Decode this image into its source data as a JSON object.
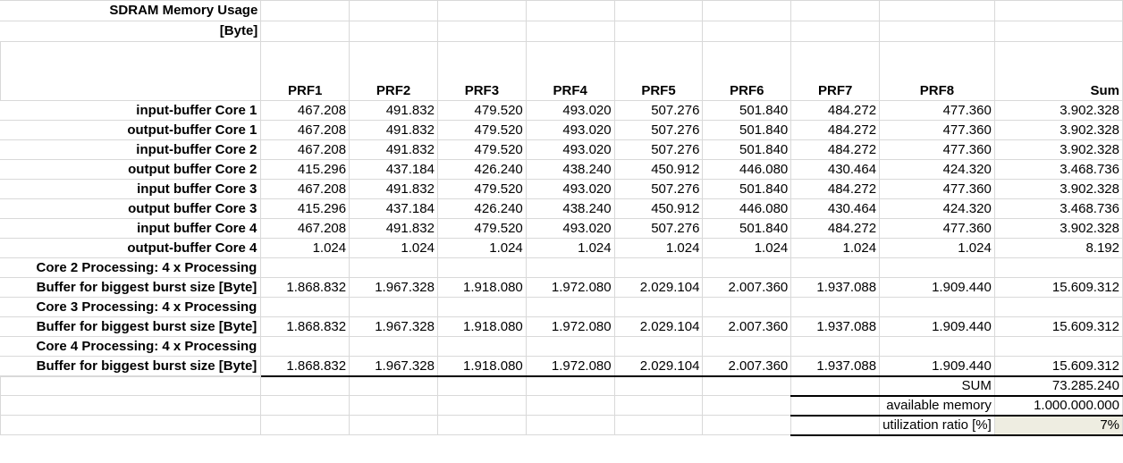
{
  "title_line1": "SDRAM Memory Usage",
  "title_line2": "[Byte]",
  "headers": [
    "PRF1",
    "PRF2",
    "PRF3",
    "PRF4",
    "PRF5",
    "PRF6",
    "PRF7",
    "PRF8",
    "Sum"
  ],
  "rows": [
    {
      "label": "input-buffer Core 1",
      "values": [
        "467.208",
        "491.832",
        "479.520",
        "493.020",
        "507.276",
        "501.840",
        "484.272",
        "477.360",
        "3.902.328"
      ]
    },
    {
      "label": "output-buffer Core 1",
      "values": [
        "467.208",
        "491.832",
        "479.520",
        "493.020",
        "507.276",
        "501.840",
        "484.272",
        "477.360",
        "3.902.328"
      ]
    },
    {
      "label": "input-buffer Core 2",
      "values": [
        "467.208",
        "491.832",
        "479.520",
        "493.020",
        "507.276",
        "501.840",
        "484.272",
        "477.360",
        "3.902.328"
      ]
    },
    {
      "label": "output buffer Core 2",
      "values": [
        "415.296",
        "437.184",
        "426.240",
        "438.240",
        "450.912",
        "446.080",
        "430.464",
        "424.320",
        "3.468.736"
      ]
    },
    {
      "label": "input buffer Core 3",
      "values": [
        "467.208",
        "491.832",
        "479.520",
        "493.020",
        "507.276",
        "501.840",
        "484.272",
        "477.360",
        "3.902.328"
      ]
    },
    {
      "label": "output buffer Core 3",
      "values": [
        "415.296",
        "437.184",
        "426.240",
        "438.240",
        "450.912",
        "446.080",
        "430.464",
        "424.320",
        "3.468.736"
      ]
    },
    {
      "label": "input buffer Core 4",
      "values": [
        "467.208",
        "491.832",
        "479.520",
        "493.020",
        "507.276",
        "501.840",
        "484.272",
        "477.360",
        "3.902.328"
      ]
    },
    {
      "label": "output-buffer Core 4",
      "values": [
        "1.024",
        "1.024",
        "1.024",
        "1.024",
        "1.024",
        "1.024",
        "1.024",
        "1.024",
        "8.192"
      ]
    }
  ],
  "processing_rows": [
    {
      "label_line1": "Core 2 Processing: 4 x Processing",
      "label_line2": "Buffer for biggest burst size [Byte]",
      "values": [
        "1.868.832",
        "1.967.328",
        "1.918.080",
        "1.972.080",
        "2.029.104",
        "2.007.360",
        "1.937.088",
        "1.909.440",
        "15.609.312"
      ]
    },
    {
      "label_line1": "Core 3 Processing: 4 x Processing",
      "label_line2": "Buffer for biggest burst size [Byte]",
      "values": [
        "1.868.832",
        "1.967.328",
        "1.918.080",
        "1.972.080",
        "2.029.104",
        "2.007.360",
        "1.937.088",
        "1.909.440",
        "15.609.312"
      ]
    },
    {
      "label_line1": "Core 4 Processing: 4 x Processing",
      "label_line2": "Buffer for biggest burst size [Byte]",
      "values": [
        "1.868.832",
        "1.967.328",
        "1.918.080",
        "1.972.080",
        "2.029.104",
        "2.007.360",
        "1.937.088",
        "1.909.440",
        "15.609.312"
      ]
    }
  ],
  "summary": {
    "sum_label": "SUM",
    "sum_value": "73.285.240",
    "available_label": "available memory",
    "available_value": "1.000.000.000",
    "ratio_label": "utilization ratio [%]",
    "ratio_value": "7%"
  },
  "colors": {
    "highlight": "#eeede1",
    "grid": "#d9d9d9"
  }
}
